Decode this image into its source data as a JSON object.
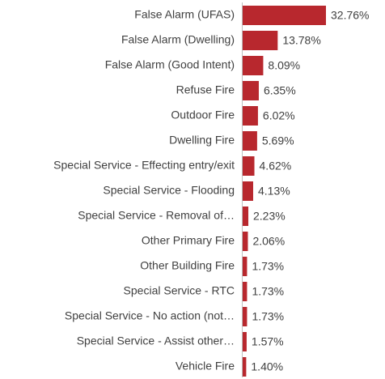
{
  "chart_data": {
    "type": "bar",
    "orientation": "horizontal",
    "color": "#b8282e",
    "categories": [
      "False Alarm (UFAS)",
      "False Alarm (Dwelling)",
      "False Alarm (Good Intent)",
      "Refuse Fire",
      "Outdoor Fire",
      "Dwelling Fire",
      "Special Service - Effecting entry/exit",
      "Special Service - Flooding",
      "Special Service - Removal of…",
      "Other Primary Fire",
      "Other Building Fire",
      "Special Service - RTC",
      "Special Service - No action (not…",
      "Special Service - Assist other…",
      "Vehicle Fire"
    ],
    "values": [
      32.76,
      13.78,
      8.09,
      6.35,
      6.02,
      5.69,
      4.62,
      4.13,
      2.23,
      2.06,
      1.73,
      1.73,
      1.73,
      1.57,
      1.4
    ],
    "value_labels": [
      "32.76%",
      "13.78%",
      "8.09%",
      "6.35%",
      "6.02%",
      "5.69%",
      "4.62%",
      "4.13%",
      "2.23%",
      "2.06%",
      "1.73%",
      "1.73%",
      "1.73%",
      "1.57%",
      "1.40%"
    ]
  }
}
